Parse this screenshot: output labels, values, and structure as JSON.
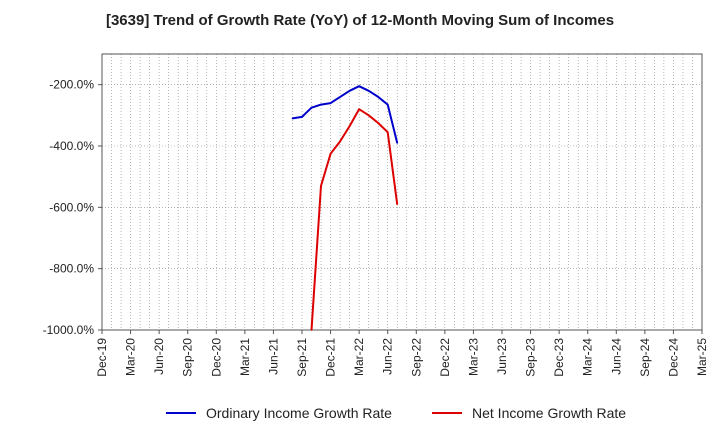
{
  "chart_data": {
    "type": "line",
    "title": "[3639]  Trend of Growth Rate (YoY) of 12-Month Moving Sum of Incomes",
    "xlabel": "",
    "ylabel": "",
    "ylim": [
      -1000,
      -100
    ],
    "yticks": [
      -200,
      -400,
      -600,
      -800,
      -1000
    ],
    "ytick_labels": [
      "-200.0%",
      "-400.0%",
      "-600.0%",
      "-800.0%",
      "-1000.0%"
    ],
    "x_range": [
      "2019-12",
      "2025-03"
    ],
    "xtick_labels": [
      "Dec-19",
      "Mar-20",
      "Jun-20",
      "Sep-20",
      "Dec-20",
      "Mar-21",
      "Jun-21",
      "Sep-21",
      "Dec-21",
      "Mar-22",
      "Jun-22",
      "Sep-22",
      "Dec-22",
      "Mar-23",
      "Jun-23",
      "Sep-23",
      "Dec-23",
      "Mar-24",
      "Jun-24",
      "Sep-24",
      "Dec-24",
      "Mar-25"
    ],
    "xticks": [
      "2019-12",
      "2020-03",
      "2020-06",
      "2020-09",
      "2020-12",
      "2021-03",
      "2021-06",
      "2021-09",
      "2021-12",
      "2022-03",
      "2022-06",
      "2022-09",
      "2022-12",
      "2023-03",
      "2023-06",
      "2023-09",
      "2023-12",
      "2024-03",
      "2024-06",
      "2024-09",
      "2024-12",
      "2025-03"
    ],
    "grid": true,
    "legend_position": "bottom",
    "series": [
      {
        "name": "Ordinary Income Growth Rate",
        "color": "#0000cc",
        "x": [
          "2021-08",
          "2021-09",
          "2021-10",
          "2021-11",
          "2021-12",
          "2022-01",
          "2022-02",
          "2022-03",
          "2022-04",
          "2022-05",
          "2022-06",
          "2022-07"
        ],
        "y": [
          -310,
          -305,
          -275,
          -265,
          -260,
          -240,
          -220,
          -205,
          -220,
          -240,
          -265,
          -390
        ]
      },
      {
        "name": "Net Income Growth Rate",
        "color": "#dd0000",
        "x": [
          "2021-10",
          "2021-11",
          "2021-12",
          "2022-01",
          "2022-02",
          "2022-03",
          "2022-04",
          "2022-05",
          "2022-06",
          "2022-07"
        ],
        "y": [
          -1000,
          -530,
          -425,
          -385,
          -335,
          -280,
          -300,
          -325,
          -355,
          -590
        ]
      }
    ]
  }
}
